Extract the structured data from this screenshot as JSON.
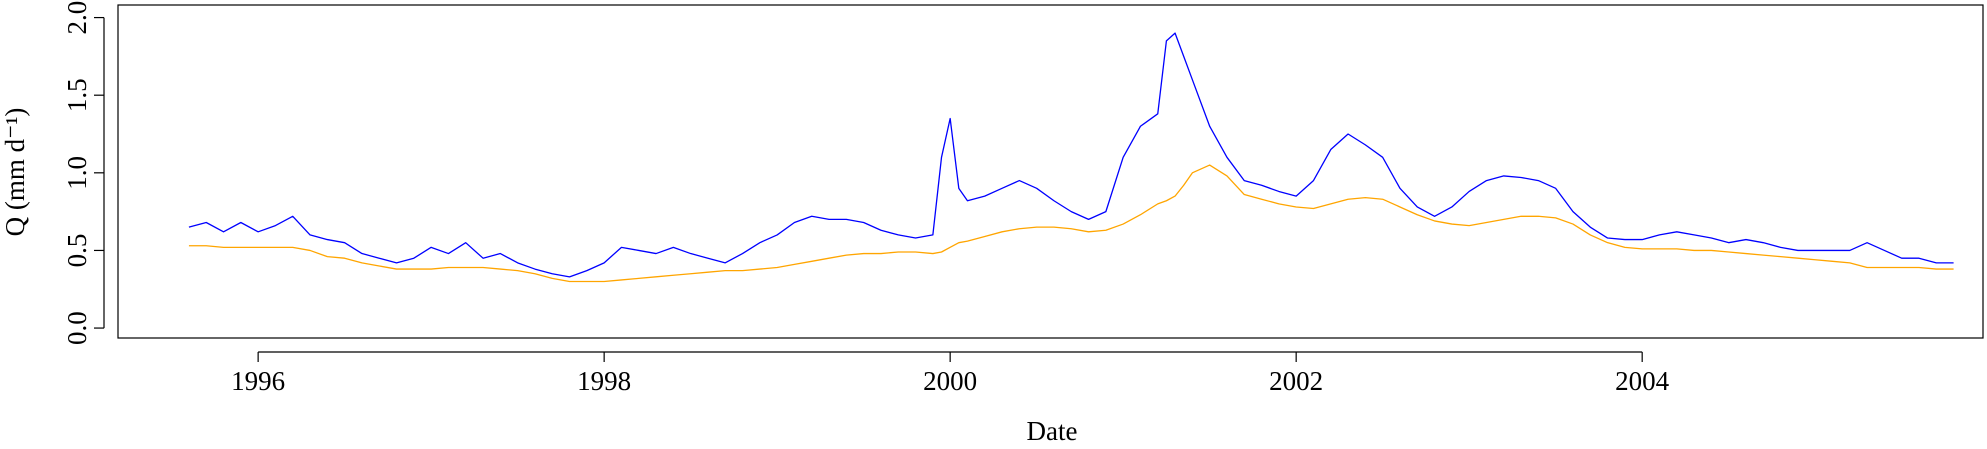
{
  "chart_data": {
    "type": "line",
    "x_label": "Date",
    "y_label": "Q (mm d⁻¹)",
    "x": [
      1995.6,
      1995.7,
      1995.8,
      1995.9,
      1996.0,
      1996.1,
      1996.2,
      1996.3,
      1996.4,
      1996.5,
      1996.6,
      1996.7,
      1996.8,
      1996.9,
      1997.0,
      1997.1,
      1997.2,
      1997.3,
      1997.4,
      1997.5,
      1997.6,
      1997.7,
      1997.8,
      1997.9,
      1998.0,
      1998.1,
      1998.2,
      1998.3,
      1998.4,
      1998.5,
      1998.6,
      1998.7,
      1998.8,
      1998.9,
      1999.0,
      1999.1,
      1999.2,
      1999.3,
      1999.4,
      1999.5,
      1999.6,
      1999.7,
      1999.8,
      1999.9,
      1999.95,
      2000.0,
      2000.05,
      2000.1,
      2000.2,
      2000.3,
      2000.4,
      2000.5,
      2000.6,
      2000.7,
      2000.8,
      2000.9,
      2001.0,
      2001.1,
      2001.2,
      2001.25,
      2001.3,
      2001.35,
      2001.4,
      2001.5,
      2001.6,
      2001.7,
      2001.8,
      2001.9,
      2002.0,
      2002.1,
      2002.2,
      2002.3,
      2002.4,
      2002.5,
      2002.6,
      2002.7,
      2002.8,
      2002.9,
      2003.0,
      2003.1,
      2003.2,
      2003.3,
      2003.4,
      2003.5,
      2003.6,
      2003.7,
      2003.8,
      2003.9,
      2004.0,
      2004.1,
      2004.2,
      2004.3,
      2004.4,
      2004.5,
      2004.6,
      2004.7,
      2004.8,
      2004.9,
      2005.0,
      2005.1,
      2005.2,
      2005.3,
      2005.4,
      2005.5,
      2005.6,
      2005.7,
      2005.8
    ],
    "series": [
      {
        "color": "#0000ff",
        "values": [
          0.65,
          0.68,
          0.62,
          0.68,
          0.62,
          0.66,
          0.72,
          0.6,
          0.57,
          0.55,
          0.48,
          0.45,
          0.42,
          0.45,
          0.52,
          0.48,
          0.55,
          0.45,
          0.48,
          0.42,
          0.38,
          0.35,
          0.33,
          0.37,
          0.42,
          0.52,
          0.5,
          0.48,
          0.52,
          0.48,
          0.45,
          0.42,
          0.48,
          0.55,
          0.6,
          0.68,
          0.72,
          0.7,
          0.7,
          0.68,
          0.63,
          0.6,
          0.58,
          0.6,
          1.1,
          1.35,
          0.9,
          0.82,
          0.85,
          0.9,
          0.95,
          0.9,
          0.82,
          0.75,
          0.7,
          0.75,
          1.1,
          1.3,
          1.38,
          1.85,
          1.9,
          1.75,
          1.6,
          1.3,
          1.1,
          0.95,
          0.92,
          0.88,
          0.85,
          0.95,
          1.15,
          1.25,
          1.18,
          1.1,
          0.9,
          0.78,
          0.72,
          0.78,
          0.88,
          0.95,
          0.98,
          0.97,
          0.95,
          0.9,
          0.75,
          0.65,
          0.58,
          0.57,
          0.57,
          0.6,
          0.62,
          0.6,
          0.58,
          0.55,
          0.57,
          0.55,
          0.52,
          0.5,
          0.5,
          0.5,
          0.5,
          0.55,
          0.5,
          0.45,
          0.45,
          0.42,
          0.42
        ]
      },
      {
        "color": "#ffa500",
        "values": [
          0.53,
          0.53,
          0.52,
          0.52,
          0.52,
          0.52,
          0.52,
          0.5,
          0.46,
          0.45,
          0.42,
          0.4,
          0.38,
          0.38,
          0.38,
          0.39,
          0.39,
          0.39,
          0.38,
          0.37,
          0.35,
          0.32,
          0.3,
          0.3,
          0.3,
          0.31,
          0.32,
          0.33,
          0.34,
          0.35,
          0.36,
          0.37,
          0.37,
          0.38,
          0.39,
          0.41,
          0.43,
          0.45,
          0.47,
          0.48,
          0.48,
          0.49,
          0.49,
          0.48,
          0.49,
          0.52,
          0.55,
          0.56,
          0.59,
          0.62,
          0.64,
          0.65,
          0.65,
          0.64,
          0.62,
          0.63,
          0.67,
          0.73,
          0.8,
          0.82,
          0.85,
          0.92,
          1.0,
          1.05,
          0.98,
          0.86,
          0.83,
          0.8,
          0.78,
          0.77,
          0.8,
          0.83,
          0.84,
          0.83,
          0.78,
          0.73,
          0.69,
          0.67,
          0.66,
          0.68,
          0.7,
          0.72,
          0.72,
          0.71,
          0.67,
          0.6,
          0.55,
          0.52,
          0.51,
          0.51,
          0.51,
          0.5,
          0.5,
          0.49,
          0.48,
          0.47,
          0.46,
          0.45,
          0.44,
          0.43,
          0.42,
          0.39,
          0.39,
          0.39,
          0.39,
          0.38,
          0.38
        ]
      }
    ],
    "xlim": [
      1995.19,
      2005.97
    ],
    "xticks": [
      1996,
      1998,
      2000,
      2002,
      2004
    ],
    "ylim": [
      -0.064,
      2.081
    ],
    "yticks": [
      {
        "value": 0,
        "label": "0.0"
      },
      0.5,
      {
        "value": 1,
        "label": "1.0"
      },
      1.5,
      {
        "value": 2,
        "label": "2.0"
      }
    ]
  }
}
